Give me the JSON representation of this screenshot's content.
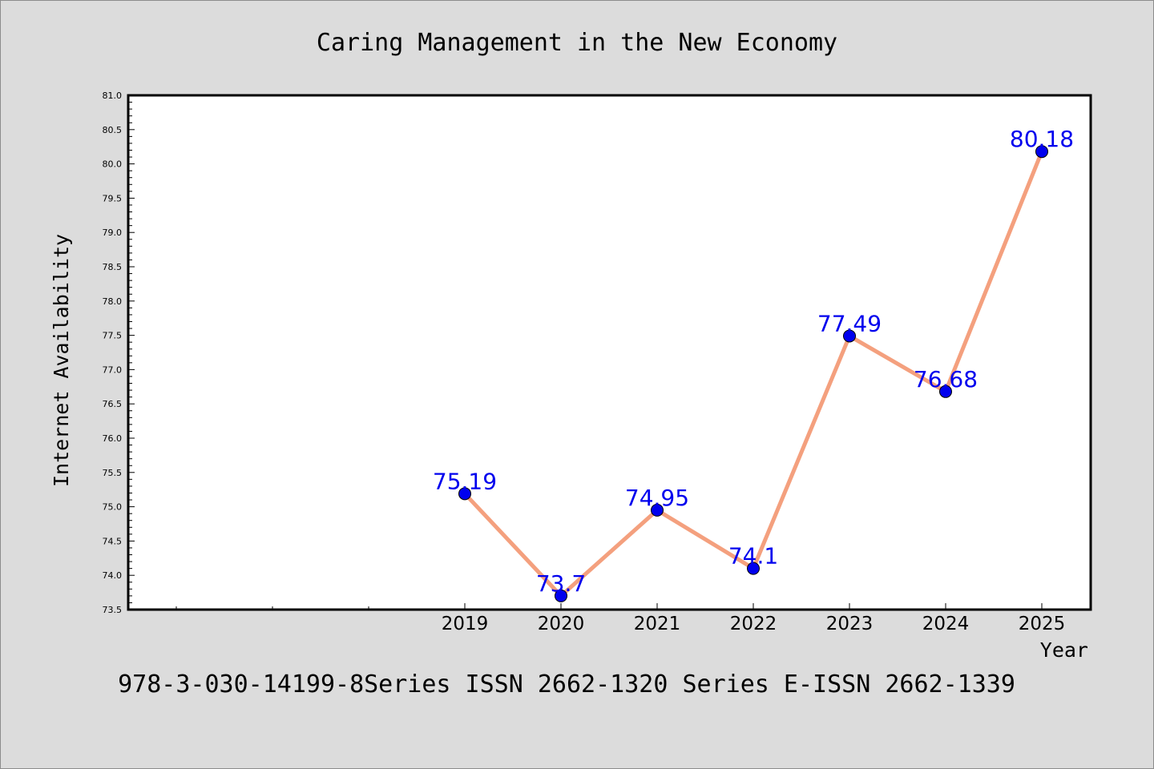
{
  "chart_data": {
    "type": "line",
    "title": "Caring Management in the New Economy",
    "xlabel": "Year",
    "ylabel": "Internet Availability",
    "categories": [
      "2019",
      "2020",
      "2021",
      "2022",
      "2023",
      "2024",
      "2025"
    ],
    "series": [
      {
        "values": [
          75.19,
          73.7,
          74.95,
          74.1,
          77.49,
          76.68,
          80.18
        ],
        "data_labels": [
          "75.19",
          "73.7",
          "74.95",
          "74.1",
          "77.49",
          "76.68",
          "80.18"
        ]
      }
    ],
    "ylim": [
      73.5,
      81.0
    ],
    "yticks": [
      "73.5",
      "74.0",
      "74.5",
      "75.0",
      "75.5",
      "76.0",
      "76.5",
      "77.0",
      "77.5",
      "78.0",
      "78.5",
      "79.0",
      "79.5",
      "80.0",
      "80.5",
      "81.0"
    ],
    "grid": false,
    "line_color": "#f4a07e",
    "marker_color": "#0000ee",
    "label_color": "#0000ee"
  },
  "footer": "978-3-030-14199-8Series ISSN 2662-1320 Series E-ISSN 2662-1339"
}
